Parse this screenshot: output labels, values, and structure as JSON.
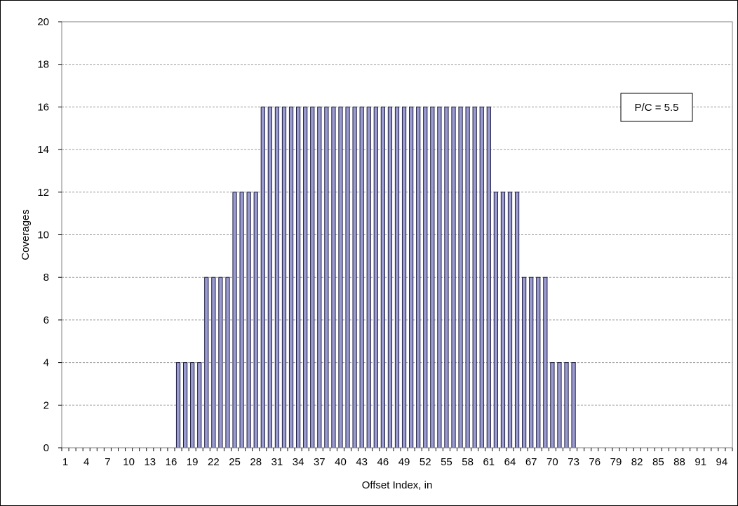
{
  "chart_data": {
    "type": "bar",
    "xlabel": "Offset Index, in",
    "ylabel": "Coverages",
    "ylim": [
      0,
      20
    ],
    "yticks": [
      0,
      2,
      4,
      6,
      8,
      10,
      12,
      14,
      16,
      18,
      20
    ],
    "grid": "horizontal dashed",
    "annotation": "P/C = 5.5",
    "colors": {
      "bar_fill": "#9b9bd0",
      "bar_stroke": "#1a1a40",
      "grid": "#9a9a9a"
    },
    "categories": [
      1,
      2,
      3,
      4,
      5,
      6,
      7,
      8,
      9,
      10,
      11,
      12,
      13,
      14,
      15,
      16,
      17,
      18,
      19,
      20,
      21,
      22,
      23,
      24,
      25,
      26,
      27,
      28,
      29,
      30,
      31,
      32,
      33,
      34,
      35,
      36,
      37,
      38,
      39,
      40,
      41,
      42,
      43,
      44,
      45,
      46,
      47,
      48,
      49,
      50,
      51,
      52,
      53,
      54,
      55,
      56,
      57,
      58,
      59,
      60,
      61,
      62,
      63,
      64,
      65,
      66,
      67,
      68,
      69,
      70,
      71,
      72,
      73,
      74,
      75,
      76,
      77,
      78,
      79,
      80,
      81,
      82,
      83,
      84,
      85,
      86,
      87,
      88,
      89,
      90,
      91,
      92,
      93,
      94,
      95
    ],
    "x_tick_labels": [
      1,
      4,
      7,
      10,
      13,
      16,
      19,
      22,
      25,
      28,
      31,
      34,
      37,
      40,
      43,
      46,
      49,
      52,
      55,
      58,
      61,
      64,
      67,
      70,
      73,
      76,
      79,
      82,
      85,
      88,
      91,
      94
    ],
    "values": [
      0,
      0,
      0,
      0,
      0,
      0,
      0,
      0,
      0,
      0,
      0,
      0,
      0,
      0,
      0,
      0,
      4,
      4,
      4,
      4,
      8,
      8,
      8,
      8,
      12,
      12,
      12,
      12,
      16,
      16,
      16,
      16,
      16,
      16,
      16,
      16,
      16,
      16,
      16,
      16,
      16,
      16,
      16,
      16,
      16,
      16,
      16,
      16,
      16,
      16,
      16,
      16,
      16,
      16,
      16,
      16,
      16,
      16,
      16,
      16,
      16,
      12,
      12,
      12,
      12,
      8,
      8,
      8,
      8,
      4,
      4,
      4,
      4,
      0,
      0,
      0,
      0,
      0,
      0,
      0,
      0,
      0,
      0,
      0,
      0,
      0,
      0,
      0,
      0,
      0,
      0,
      0,
      0,
      0,
      0
    ]
  }
}
